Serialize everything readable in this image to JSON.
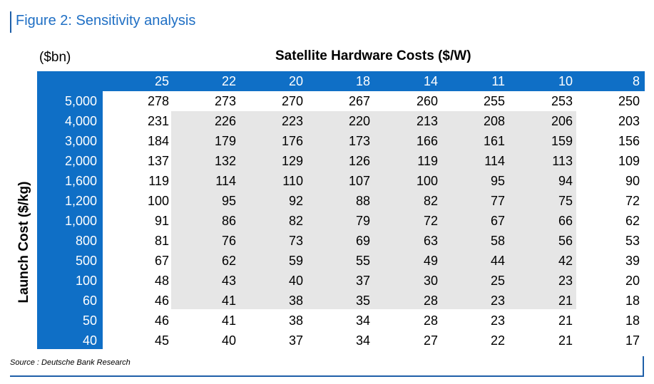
{
  "figure_title": "Figure 2: Sensitivity analysis",
  "units_label": "($bn)",
  "column_title": "Satellite Hardware Costs ($/W)",
  "row_title": "Launch Cost ($/kg)",
  "source": "Source : Deutsche Bank Research",
  "colors": {
    "header_blue": "#0f6fc6",
    "title_blue": "#1f6fc4",
    "shade_grey": "#e6e6e6",
    "rule_blue": "#1f5fa8"
  },
  "columns": [
    "25",
    "22",
    "20",
    "18",
    "14",
    "11",
    "10",
    "8"
  ],
  "rows": [
    {
      "label": "5,000",
      "values": [
        "278",
        "273",
        "270",
        "267",
        "260",
        "255",
        "253",
        "250"
      ]
    },
    {
      "label": "4,000",
      "values": [
        "231",
        "226",
        "223",
        "220",
        "213",
        "208",
        "206",
        "203"
      ]
    },
    {
      "label": "3,000",
      "values": [
        "184",
        "179",
        "176",
        "173",
        "166",
        "161",
        "159",
        "156"
      ]
    },
    {
      "label": "2,000",
      "values": [
        "137",
        "132",
        "129",
        "126",
        "119",
        "114",
        "113",
        "109"
      ]
    },
    {
      "label": "1,600",
      "values": [
        "119",
        "114",
        "110",
        "107",
        "100",
        "95",
        "94",
        "90"
      ]
    },
    {
      "label": "1,200",
      "values": [
        "100",
        "95",
        "92",
        "88",
        "82",
        "77",
        "75",
        "72"
      ]
    },
    {
      "label": "1,000",
      "values": [
        "91",
        "86",
        "82",
        "79",
        "72",
        "67",
        "66",
        "62"
      ]
    },
    {
      "label": "800",
      "values": [
        "81",
        "76",
        "73",
        "69",
        "63",
        "58",
        "56",
        "53"
      ]
    },
    {
      "label": "500",
      "values": [
        "67",
        "62",
        "59",
        "55",
        "49",
        "44",
        "42",
        "39"
      ]
    },
    {
      "label": "100",
      "values": [
        "48",
        "43",
        "40",
        "37",
        "30",
        "25",
        "23",
        "20"
      ]
    },
    {
      "label": "60",
      "values": [
        "46",
        "41",
        "38",
        "35",
        "28",
        "23",
        "21",
        "18"
      ]
    },
    {
      "label": "50",
      "values": [
        "46",
        "41",
        "38",
        "34",
        "28",
        "23",
        "21",
        "18"
      ]
    },
    {
      "label": "40",
      "values": [
        "45",
        "40",
        "37",
        "34",
        "27",
        "22",
        "21",
        "17"
      ]
    }
  ]
}
